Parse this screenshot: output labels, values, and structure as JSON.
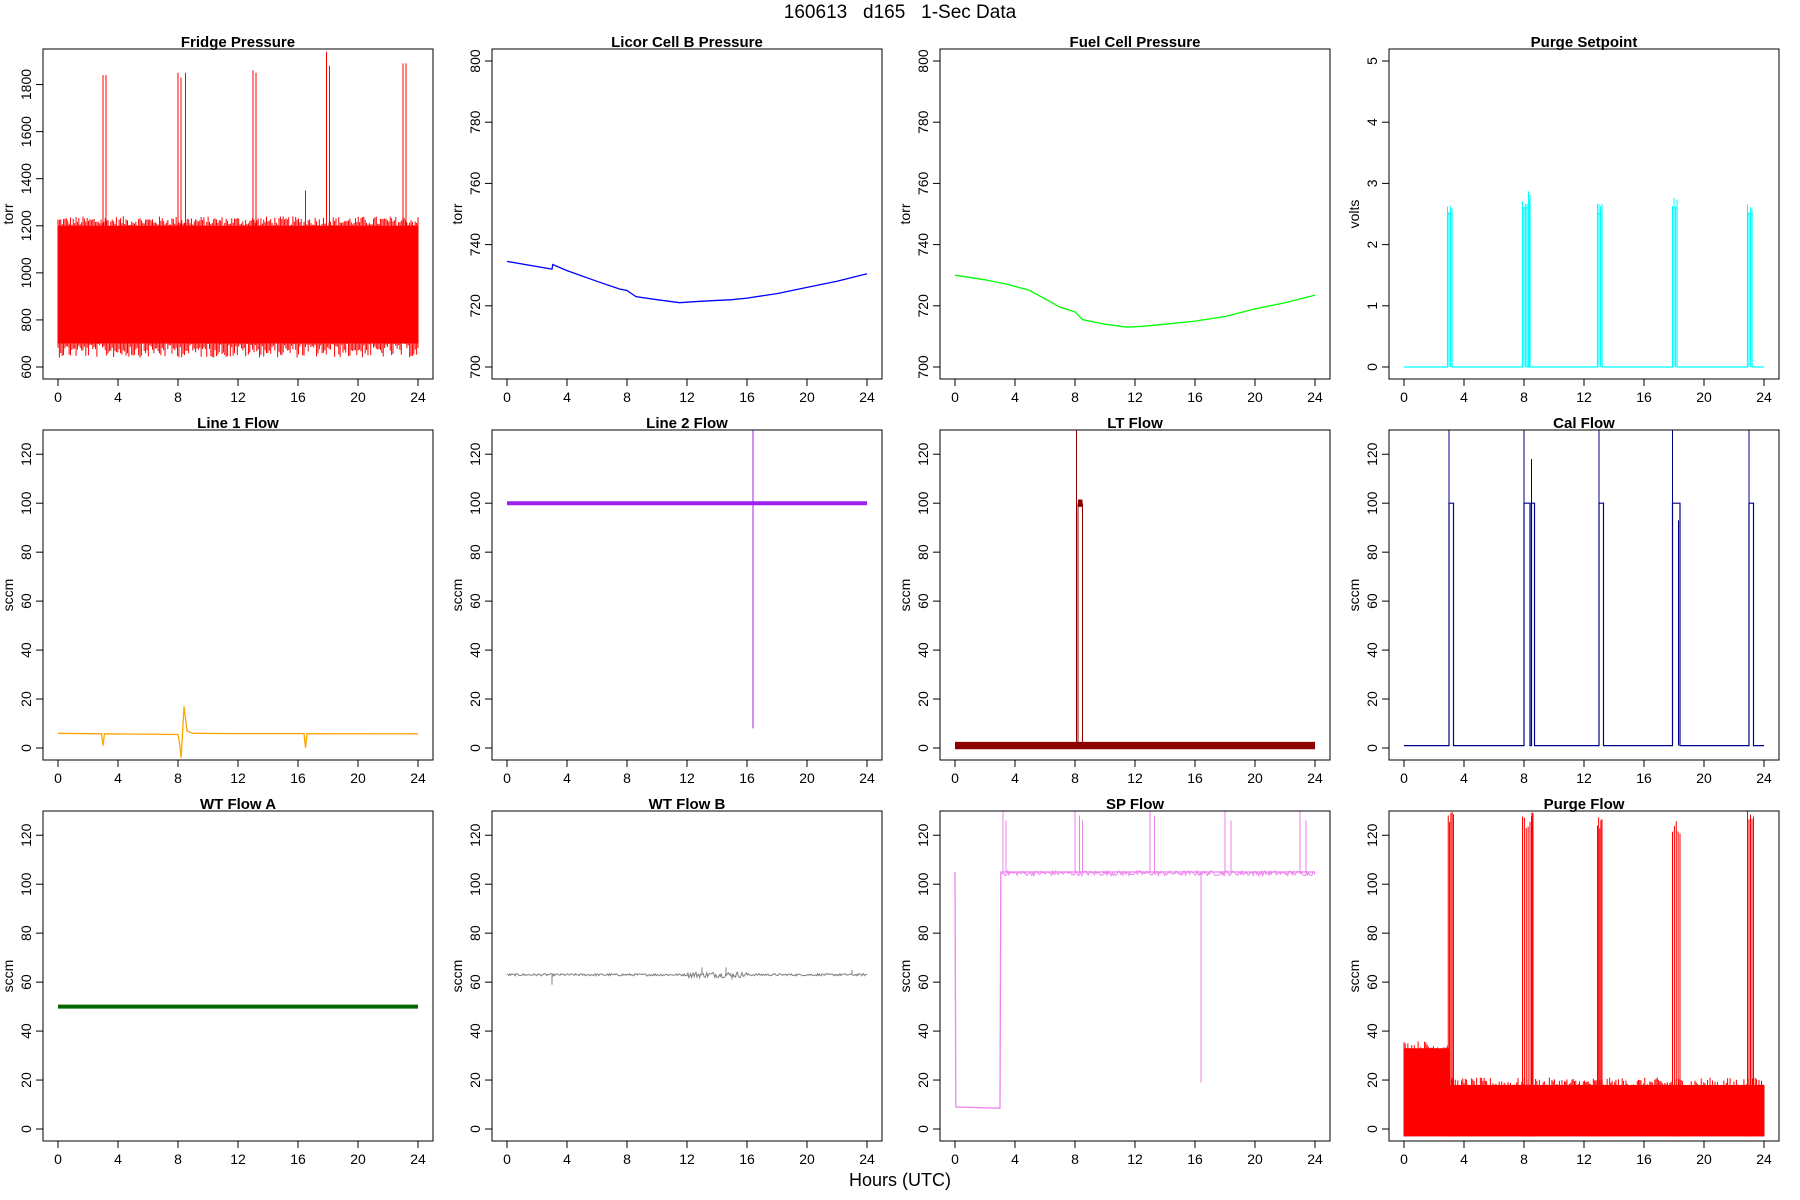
{
  "page": {
    "title": "160613   d165   1-Sec Data",
    "xlabel": "Hours (UTC)"
  },
  "chart_data": [
    {
      "type": "line",
      "title": "Fridge Pressure",
      "ylabel": "torr",
      "color": "#ff0000",
      "xlim": [
        0,
        24
      ],
      "ylim": [
        600,
        1900
      ],
      "xticks": [
        0,
        4,
        8,
        12,
        16,
        20,
        24
      ],
      "yticks": [
        600,
        800,
        1000,
        1200,
        1400,
        1600,
        1800
      ],
      "pattern": "band",
      "band": [
        700,
        1200
      ],
      "spikes": [
        [
          3.0,
          1840
        ],
        [
          3.2,
          1840
        ],
        [
          8.0,
          1850
        ],
        [
          8.2,
          1830
        ],
        [
          8.5,
          1850
        ],
        [
          13.0,
          1860
        ],
        [
          13.2,
          1850
        ],
        [
          16.5,
          1350
        ],
        [
          17.9,
          1940
        ],
        [
          18.1,
          1880
        ],
        [
          23.0,
          1890
        ],
        [
          23.2,
          1890
        ]
      ]
    },
    {
      "type": "line",
      "title": "Licor Cell B Pressure",
      "ylabel": "torr",
      "color": "#0000ff",
      "xlim": [
        0,
        24
      ],
      "ylim": [
        700,
        800
      ],
      "xticks": [
        0,
        4,
        8,
        12,
        16,
        20,
        24
      ],
      "yticks": [
        700,
        720,
        740,
        760,
        780,
        800
      ],
      "x": [
        0,
        3,
        3.05,
        4,
        6,
        7.5,
        8,
        8.6,
        10,
        11.5,
        13,
        15,
        16,
        18,
        20,
        22,
        24
      ],
      "y": [
        734.5,
        732,
        733.5,
        731.5,
        728,
        725.5,
        725,
        723,
        722,
        721,
        721.5,
        722,
        722.5,
        724,
        726,
        728,
        730.5
      ]
    },
    {
      "type": "line",
      "title": "Fuel Cell Pressure",
      "ylabel": "torr",
      "color": "#00ff00",
      "xlim": [
        0,
        24
      ],
      "ylim": [
        700,
        800
      ],
      "xticks": [
        0,
        4,
        8,
        12,
        16,
        20,
        24
      ],
      "yticks": [
        700,
        720,
        740,
        760,
        780,
        800
      ],
      "x": [
        0,
        2,
        3.5,
        5,
        7,
        8,
        8.5,
        10,
        11.5,
        13,
        14,
        16,
        18,
        20,
        22,
        24
      ],
      "y": [
        730,
        728.5,
        727,
        725,
        719.5,
        718,
        715.5,
        714,
        713,
        713.5,
        714,
        715,
        716.5,
        719,
        721,
        723.5
      ]
    },
    {
      "type": "line",
      "title": "Purge Setpoint",
      "ylabel": "volts",
      "color": "#00ffff",
      "xlim": [
        0,
        24
      ],
      "ylim": [
        0,
        5
      ],
      "xticks": [
        0,
        4,
        8,
        12,
        16,
        20,
        24
      ],
      "yticks": [
        0,
        1,
        2,
        3,
        4,
        5
      ],
      "pattern": "pulses",
      "base": 0,
      "pulses": [
        [
          2.9,
          3.2,
          2.5
        ],
        [
          7.9,
          8.2,
          2.6
        ],
        [
          8.3,
          8.4,
          2.7
        ],
        [
          12.9,
          13.2,
          2.5
        ],
        [
          17.9,
          18.2,
          2.6
        ],
        [
          22.9,
          23.2,
          2.5
        ]
      ]
    },
    {
      "type": "line",
      "title": "Line 1 Flow",
      "ylabel": "sccm",
      "color": "#ffa500",
      "xlim": [
        0,
        24
      ],
      "ylim": [
        0,
        125
      ],
      "xticks": [
        0,
        4,
        8,
        12,
        16,
        20,
        24
      ],
      "yticks": [
        0,
        20,
        40,
        60,
        80,
        100,
        120
      ],
      "x": [
        0,
        2.9,
        3,
        3.1,
        8,
        8.1,
        8.2,
        8.3,
        8.4,
        8.6,
        9,
        12,
        16.4,
        16.5,
        16.6,
        24
      ],
      "y": [
        6,
        5.8,
        1,
        5.8,
        5.5,
        2,
        -4,
        6,
        17,
        7,
        6,
        5.9,
        5.9,
        0,
        5.9,
        5.8
      ]
    },
    {
      "type": "line",
      "title": "Line 2 Flow",
      "ylabel": "sccm",
      "color": "#a020f0",
      "xlim": [
        0,
        24
      ],
      "ylim": [
        0,
        125
      ],
      "xticks": [
        0,
        4,
        8,
        12,
        16,
        20,
        24
      ],
      "yticks": [
        0,
        20,
        40,
        60,
        80,
        100,
        120
      ],
      "pattern": "thick",
      "level": 100,
      "spikes": [
        [
          16.4,
          130
        ],
        [
          16.4,
          8
        ]
      ]
    },
    {
      "type": "line",
      "title": "LT Flow",
      "ylabel": "sccm",
      "color": "#8b0000",
      "xlim": [
        0,
        24
      ],
      "ylim": [
        0,
        125
      ],
      "xticks": [
        0,
        4,
        8,
        12,
        16,
        20,
        24
      ],
      "yticks": [
        0,
        20,
        40,
        60,
        80,
        100,
        120
      ],
      "pattern": "thicklow",
      "level": 1,
      "pulses": [
        [
          8.2,
          8.5,
          100
        ]
      ],
      "spikes": [
        [
          8.1,
          130
        ]
      ]
    },
    {
      "type": "line",
      "title": "Cal Flow",
      "ylabel": "sccm",
      "color": "#00008b",
      "xlim": [
        0,
        24
      ],
      "ylim": [
        0,
        125
      ],
      "xticks": [
        0,
        4,
        8,
        12,
        16,
        20,
        24
      ],
      "yticks": [
        0,
        20,
        40,
        60,
        80,
        100,
        120
      ],
      "pattern": "pulses",
      "base": 1,
      "pulses": [
        [
          3.0,
          3.3,
          100
        ],
        [
          8.0,
          8.4,
          100
        ],
        [
          8.5,
          8.7,
          100
        ],
        [
          13.0,
          13.3,
          100
        ],
        [
          17.9,
          18.4,
          100
        ],
        [
          23.0,
          23.3,
          100
        ]
      ],
      "spikes": [
        [
          3.0,
          130
        ],
        [
          8.0,
          130
        ],
        [
          8.5,
          118
        ],
        [
          13.0,
          130
        ],
        [
          17.9,
          130
        ],
        [
          23.0,
          130
        ],
        [
          18.3,
          93
        ]
      ]
    },
    {
      "type": "line",
      "title": "WT Flow A",
      "ylabel": "sccm",
      "color": "#006400",
      "xlim": [
        0,
        24
      ],
      "ylim": [
        0,
        125
      ],
      "xticks": [
        0,
        4,
        8,
        12,
        16,
        20,
        24
      ],
      "yticks": [
        0,
        20,
        40,
        60,
        80,
        100,
        120
      ],
      "pattern": "thick",
      "level": 50,
      "spikes": []
    },
    {
      "type": "line",
      "title": "WT Flow B",
      "ylabel": "sccm",
      "color": "#808080",
      "xlim": [
        0,
        24
      ],
      "ylim": [
        0,
        125
      ],
      "xticks": [
        0,
        4,
        8,
        12,
        16,
        20,
        24
      ],
      "yticks": [
        0,
        20,
        40,
        60,
        80,
        100,
        120
      ],
      "pattern": "noisy",
      "level": 63,
      "noise": 1.5,
      "spikes": [
        [
          3.0,
          59
        ],
        [
          13.0,
          66
        ],
        [
          14.6,
          66
        ],
        [
          15.0,
          61
        ],
        [
          23.0,
          65
        ]
      ]
    },
    {
      "type": "line",
      "title": "SP Flow",
      "ylabel": "sccm",
      "color": "#ee82ee",
      "xlim": [
        0,
        24
      ],
      "ylim": [
        0,
        125
      ],
      "xticks": [
        0,
        4,
        8,
        12,
        16,
        20,
        24
      ],
      "yticks": [
        0,
        20,
        40,
        60,
        80,
        100,
        120
      ],
      "x": [
        0,
        0.05,
        0.1,
        3,
        3.05,
        3.1,
        24
      ],
      "y": [
        105,
        9,
        9,
        8.5,
        105,
        105,
        105
      ],
      "spikes": [
        [
          3.2,
          130
        ],
        [
          3.4,
          126
        ],
        [
          8.0,
          130
        ],
        [
          8.3,
          128
        ],
        [
          8.5,
          126
        ],
        [
          13.0,
          130
        ],
        [
          13.3,
          128
        ],
        [
          16.4,
          19
        ],
        [
          18.0,
          130
        ],
        [
          18.4,
          126
        ],
        [
          23.0,
          130
        ],
        [
          23.4,
          126
        ]
      ]
    },
    {
      "type": "line",
      "title": "Purge Flow",
      "ylabel": "sccm",
      "color": "#ff0000",
      "xlim": [
        0,
        24
      ],
      "ylim": [
        0,
        125
      ],
      "xticks": [
        0,
        4,
        8,
        12,
        16,
        20,
        24
      ],
      "yticks": [
        0,
        20,
        40,
        60,
        80,
        100,
        120
      ],
      "pattern": "purgeband",
      "segments": [
        [
          0,
          3,
          -3,
          33
        ],
        [
          3,
          24,
          -3,
          18
        ]
      ],
      "pulses": [
        [
          2.95,
          3.3,
          130
        ],
        [
          7.9,
          8.4,
          128
        ],
        [
          8.5,
          8.6,
          130
        ],
        [
          12.9,
          13.2,
          128
        ],
        [
          17.9,
          18.4,
          126
        ],
        [
          22.9,
          23.3,
          130
        ]
      ]
    }
  ]
}
